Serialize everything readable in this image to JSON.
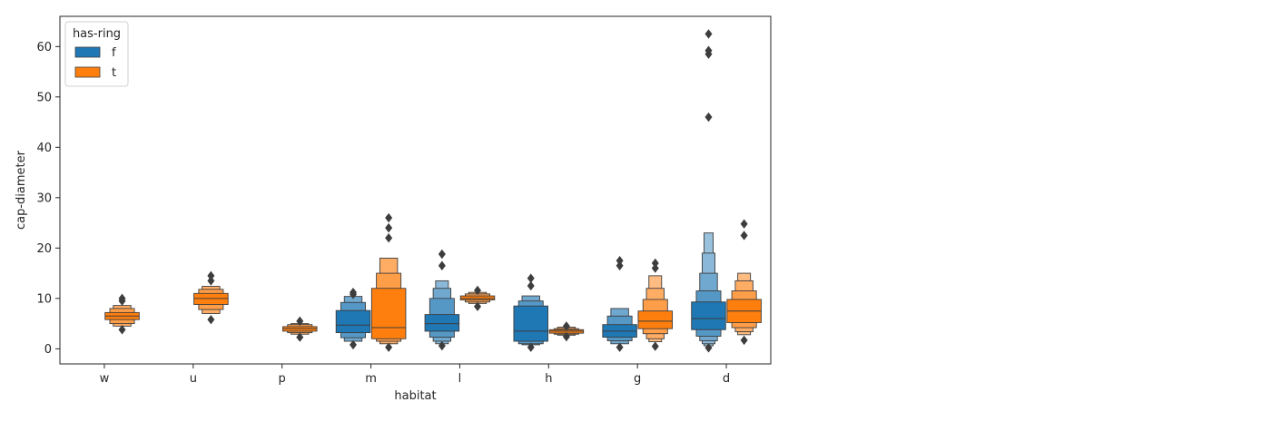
{
  "chart_data": {
    "type": "boxenplot",
    "xlabel": "habitat",
    "ylabel": "cap-diameter",
    "ylim": [
      -3,
      66
    ],
    "yticks": [
      0,
      10,
      20,
      30,
      40,
      50,
      60
    ],
    "categories": [
      "w",
      "u",
      "p",
      "m",
      "l",
      "h",
      "g",
      "d"
    ],
    "legend": {
      "title": "has-ring",
      "placement": "upper-left"
    },
    "series": [
      {
        "name": "f",
        "color": "#1f77b4",
        "boxes": [
          null,
          null,
          null,
          {
            "levels": [
              [
                3.2,
                7.6
              ],
              [
                2.2,
                9.2
              ],
              [
                1.5,
                10.4
              ]
            ],
            "median": 4.7,
            "outliers": [
              0.8,
              10.8,
              11.2
            ]
          },
          {
            "levels": [
              [
                3.5,
                6.8
              ],
              [
                2.3,
                10.0
              ],
              [
                1.5,
                12.0
              ],
              [
                1.0,
                13.5
              ]
            ],
            "median": 5.0,
            "outliers": [
              0.6,
              16.5,
              18.8
            ]
          },
          {
            "levels": [
              [
                1.5,
                8.5
              ],
              [
                1.0,
                9.5
              ],
              [
                0.8,
                10.5
              ]
            ],
            "median": 3.5,
            "outliers": [
              0.3,
              12.5,
              14.0
            ]
          },
          {
            "levels": [
              [
                2.3,
                4.8
              ],
              [
                1.6,
                6.5
              ],
              [
                1.0,
                8.0
              ]
            ],
            "median": 3.5,
            "outliers": [
              0.3,
              16.5,
              17.5
            ]
          },
          {
            "levels": [
              [
                3.8,
                9.3
              ],
              [
                2.5,
                11.5
              ],
              [
                1.6,
                15.0
              ],
              [
                1.0,
                19.0
              ],
              [
                0.6,
                23.0
              ]
            ],
            "median": 6.0,
            "outliers": [
              0.2,
              46.0,
              58.5,
              59.2,
              62.5
            ]
          }
        ]
      },
      {
        "name": "t",
        "color": "#ff7f0e",
        "boxes": [
          {
            "levels": [
              [
                5.8,
                7.2
              ],
              [
                5.0,
                8.0
              ],
              [
                4.5,
                8.6
              ]
            ],
            "median": 6.5,
            "outliers": [
              3.8,
              9.5,
              10.0
            ]
          },
          {
            "levels": [
              [
                8.8,
                11.0
              ],
              [
                7.8,
                11.8
              ],
              [
                7.0,
                12.4
              ]
            ],
            "median": 10.0,
            "outliers": [
              5.8,
              13.5,
              14.5
            ]
          },
          {
            "levels": [
              [
                3.5,
                4.4
              ],
              [
                3.2,
                4.8
              ],
              [
                2.9,
                5.0
              ]
            ],
            "median": 4.0,
            "outliers": [
              2.3,
              5.5
            ]
          },
          {
            "levels": [
              [
                2.0,
                12.0
              ],
              [
                1.5,
                15.0
              ],
              [
                1.0,
                18.0
              ]
            ],
            "median": 4.2,
            "outliers": [
              0.3,
              22.0,
              24.0,
              26.0
            ]
          },
          {
            "levels": [
              [
                9.7,
                10.5
              ],
              [
                9.3,
                10.9
              ],
              [
                9.0,
                11.2
              ]
            ],
            "median": 10.0,
            "outliers": [
              8.4,
              11.6
            ]
          },
          {
            "levels": [
              [
                3.1,
                3.8
              ],
              [
                2.9,
                4.0
              ],
              [
                2.7,
                4.3
              ]
            ],
            "median": 3.5,
            "outliers": [
              2.4,
              4.5
            ]
          },
          {
            "levels": [
              [
                4.0,
                7.5
              ],
              [
                3.0,
                9.8
              ],
              [
                2.0,
                12.0
              ],
              [
                1.4,
                14.5
              ]
            ],
            "median": 5.5,
            "outliers": [
              0.5,
              16.0,
              17.0
            ]
          },
          {
            "levels": [
              [
                5.2,
                9.8
              ],
              [
                4.2,
                11.5
              ],
              [
                3.4,
                13.5
              ],
              [
                2.8,
                15.0
              ]
            ],
            "median": 7.5,
            "outliers": [
              1.7,
              22.5,
              24.8
            ]
          }
        ]
      }
    ]
  }
}
